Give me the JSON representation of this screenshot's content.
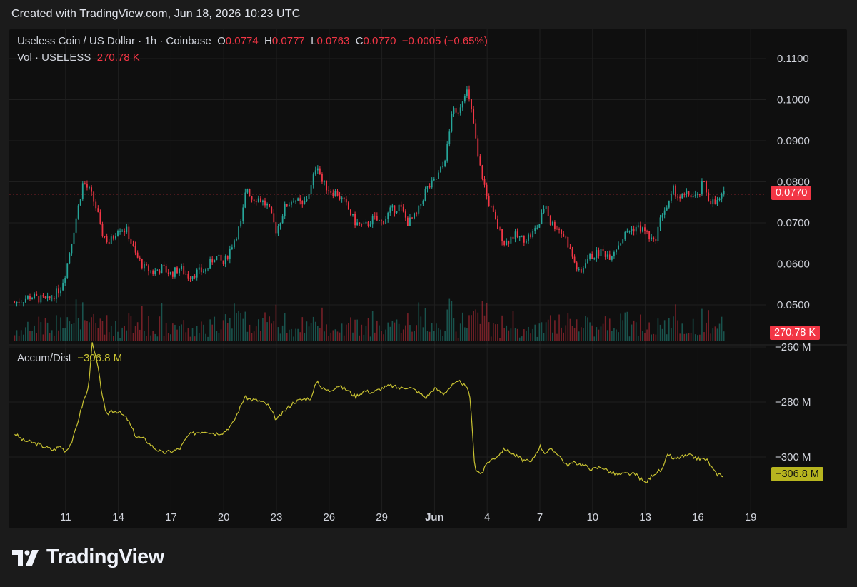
{
  "header": {
    "created_text": "Created with TradingView.com, Jun 18, 2026 10:23 UTC"
  },
  "legend": {
    "symbol": "Useless Coin / US Dollar · 1h · Coinbase",
    "o_label": "O",
    "o_value": "0.0774",
    "h_label": "H",
    "h_value": "0.0777",
    "l_label": "L",
    "l_value": "0.0763",
    "c_label": "C",
    "c_value": "0.0770",
    "change": "−0.0005 (−0.65%)",
    "vol_label": "Vol · USELESS",
    "vol_value": "270.78 K",
    "ad_label": "Accum/Dist",
    "ad_value": "−306.8 M"
  },
  "price_axis": {
    "ticks": [
      "0.1100",
      "0.1000",
      "0.0900",
      "0.0800",
      "0.0700",
      "0.0600",
      "0.0500"
    ],
    "last_price_tag": "0.0770",
    "volume_tag": "270.78 K"
  },
  "ad_axis": {
    "ticks": [
      "−260 M",
      "−280 M",
      "−300 M"
    ],
    "last_value_tag": "−306.8 M"
  },
  "time_axis": {
    "ticks": [
      "11",
      "14",
      "17",
      "20",
      "23",
      "26",
      "29",
      "Jun",
      "4",
      "7",
      "10",
      "13",
      "16",
      "19"
    ]
  },
  "colors": {
    "background": "#0f0f0f",
    "up": "#26a69a",
    "down": "#f23645",
    "ad_line": "#c8c232",
    "last_price_line": "#f23645",
    "grid": "#1f1f1f"
  },
  "footer": {
    "brand": "TradingView"
  },
  "chart_data": [
    {
      "type": "candlestick",
      "symbol": "USELESS/USD",
      "interval": "1h",
      "ylim": [
        0.048,
        0.112
      ],
      "x_ticks": [
        "11",
        "14",
        "17",
        "20",
        "23",
        "26",
        "29",
        "Jun",
        "4",
        "7",
        "10",
        "13",
        "16",
        "19"
      ],
      "close_path_days": [
        8.1,
        9.0,
        10.0,
        10.7,
        11.0,
        11.5,
        12.0,
        12.4,
        12.8,
        13.0,
        13.5,
        14.0,
        14.5,
        15.0,
        15.5,
        16.0,
        16.5,
        17.0,
        17.5,
        18.0,
        18.5,
        19.0,
        19.5,
        20.0,
        20.5,
        21.0,
        21.3,
        21.6,
        22.0,
        22.5,
        23.0,
        23.5,
        24.0,
        24.5,
        25.0,
        25.3,
        25.6,
        26.0,
        26.5,
        27.0,
        27.5,
        28.0,
        28.5,
        29.0,
        29.5,
        30.0,
        30.5,
        31.0,
        31.5,
        32.0,
        32.5,
        32.8,
        33.0,
        33.2,
        33.5,
        33.8,
        34.0,
        34.2,
        34.5,
        34.8,
        35.0,
        35.5,
        36.0,
        36.5,
        37.0,
        37.5,
        38.0,
        38.3,
        38.6,
        39.0,
        39.5,
        40.0,
        40.3,
        40.6,
        41.0,
        41.5,
        42.0,
        42.5,
        43.0,
        43.5,
        44.0,
        44.5,
        45.0,
        45.3,
        45.6,
        46.0,
        46.5,
        47.0,
        47.3,
        47.6,
        48.0,
        48.5
      ],
      "close_path_prices": [
        0.0505,
        0.052,
        0.051,
        0.054,
        0.058,
        0.069,
        0.08,
        0.0775,
        0.073,
        0.068,
        0.065,
        0.069,
        0.068,
        0.062,
        0.059,
        0.058,
        0.059,
        0.0575,
        0.059,
        0.057,
        0.058,
        0.0585,
        0.062,
        0.06,
        0.065,
        0.07,
        0.079,
        0.076,
        0.076,
        0.074,
        0.068,
        0.074,
        0.076,
        0.074,
        0.079,
        0.085,
        0.08,
        0.078,
        0.077,
        0.074,
        0.07,
        0.069,
        0.071,
        0.07,
        0.073,
        0.074,
        0.07,
        0.072,
        0.078,
        0.08,
        0.084,
        0.09,
        0.098,
        0.096,
        0.099,
        0.103,
        0.099,
        0.095,
        0.085,
        0.08,
        0.076,
        0.07,
        0.065,
        0.067,
        0.066,
        0.067,
        0.07,
        0.075,
        0.07,
        0.069,
        0.066,
        0.06,
        0.057,
        0.061,
        0.062,
        0.063,
        0.062,
        0.065,
        0.068,
        0.069,
        0.068,
        0.065,
        0.073,
        0.074,
        0.078,
        0.076,
        0.077,
        0.076,
        0.08,
        0.076,
        0.0745,
        0.077
      ],
      "last": {
        "open": 0.0774,
        "high": 0.0777,
        "low": 0.0763,
        "close": 0.077
      }
    },
    {
      "type": "bar",
      "name": "Vol · USELESS",
      "last_value": 270780
    },
    {
      "type": "line",
      "name": "Accum/Dist",
      "ylim": [
        -313,
        -257
      ],
      "ad_path_days": [
        8.1,
        8.6,
        9.0,
        9.7,
        10.3,
        10.7,
        11.0,
        11.4,
        12.0,
        12.3,
        12.5,
        12.8,
        13.0,
        13.3,
        13.6,
        14.0,
        14.5,
        15.0,
        15.5,
        16.0,
        16.5,
        17.0,
        17.5,
        18.0,
        18.5,
        19.0,
        19.5,
        20.0,
        20.5,
        21.0,
        21.2,
        21.5,
        22.0,
        22.5,
        23.0,
        23.5,
        24.0,
        24.5,
        25.0,
        25.3,
        25.6,
        26.0,
        26.5,
        27.0,
        27.5,
        28.0,
        28.5,
        29.0,
        29.5,
        30.0,
        30.5,
        31.0,
        31.5,
        32.0,
        32.5,
        33.0,
        33.5,
        34.0,
        34.3,
        34.6,
        34.8,
        35.0,
        35.5,
        36.0,
        36.5,
        37.0,
        37.5,
        38.0,
        38.3,
        38.6,
        39.0,
        39.5,
        40.0,
        40.5,
        41.0,
        41.5,
        42.0,
        42.5,
        43.0,
        43.5,
        44.0,
        44.5,
        45.0,
        45.3,
        45.6,
        46.0,
        46.5,
        47.0,
        47.5,
        48.0,
        48.5
      ],
      "ad_path_values": [
        -291.5,
        -294.0,
        -294.5,
        -296.0,
        -297.5,
        -296.0,
        -298.0,
        -294.0,
        -280.0,
        -275.0,
        -258.5,
        -266.0,
        -274.0,
        -285.0,
        -283.0,
        -283.5,
        -286.0,
        -292.5,
        -293.5,
        -296.5,
        -298.5,
        -298.0,
        -297.0,
        -292.0,
        -291.0,
        -290.5,
        -291.5,
        -291.0,
        -288.0,
        -281.0,
        -278.0,
        -279.0,
        -279.5,
        -281.0,
        -286.5,
        -283.0,
        -280.0,
        -279.0,
        -278.5,
        -272.0,
        -275.0,
        -276.0,
        -274.0,
        -275.5,
        -278.0,
        -276.0,
        -276.5,
        -275.0,
        -274.0,
        -275.0,
        -274.5,
        -276.0,
        -278.5,
        -275.0,
        -277.0,
        -274.0,
        -272.5,
        -276.5,
        -304.0,
        -306.0,
        -305.0,
        -302.0,
        -300.0,
        -297.0,
        -299.0,
        -301.0,
        -302.0,
        -296.0,
        -298.5,
        -297.5,
        -298.5,
        -303.0,
        -302.0,
        -303.0,
        -304.5,
        -303.5,
        -305.5,
        -306.5,
        -306.0,
        -306.5,
        -309.5,
        -306.0,
        -304.5,
        -298.5,
        -301.0,
        -300.0,
        -299.5,
        -300.5,
        -301.0,
        -306.0,
        -306.8
      ],
      "last_value": "−306.8 M"
    }
  ]
}
